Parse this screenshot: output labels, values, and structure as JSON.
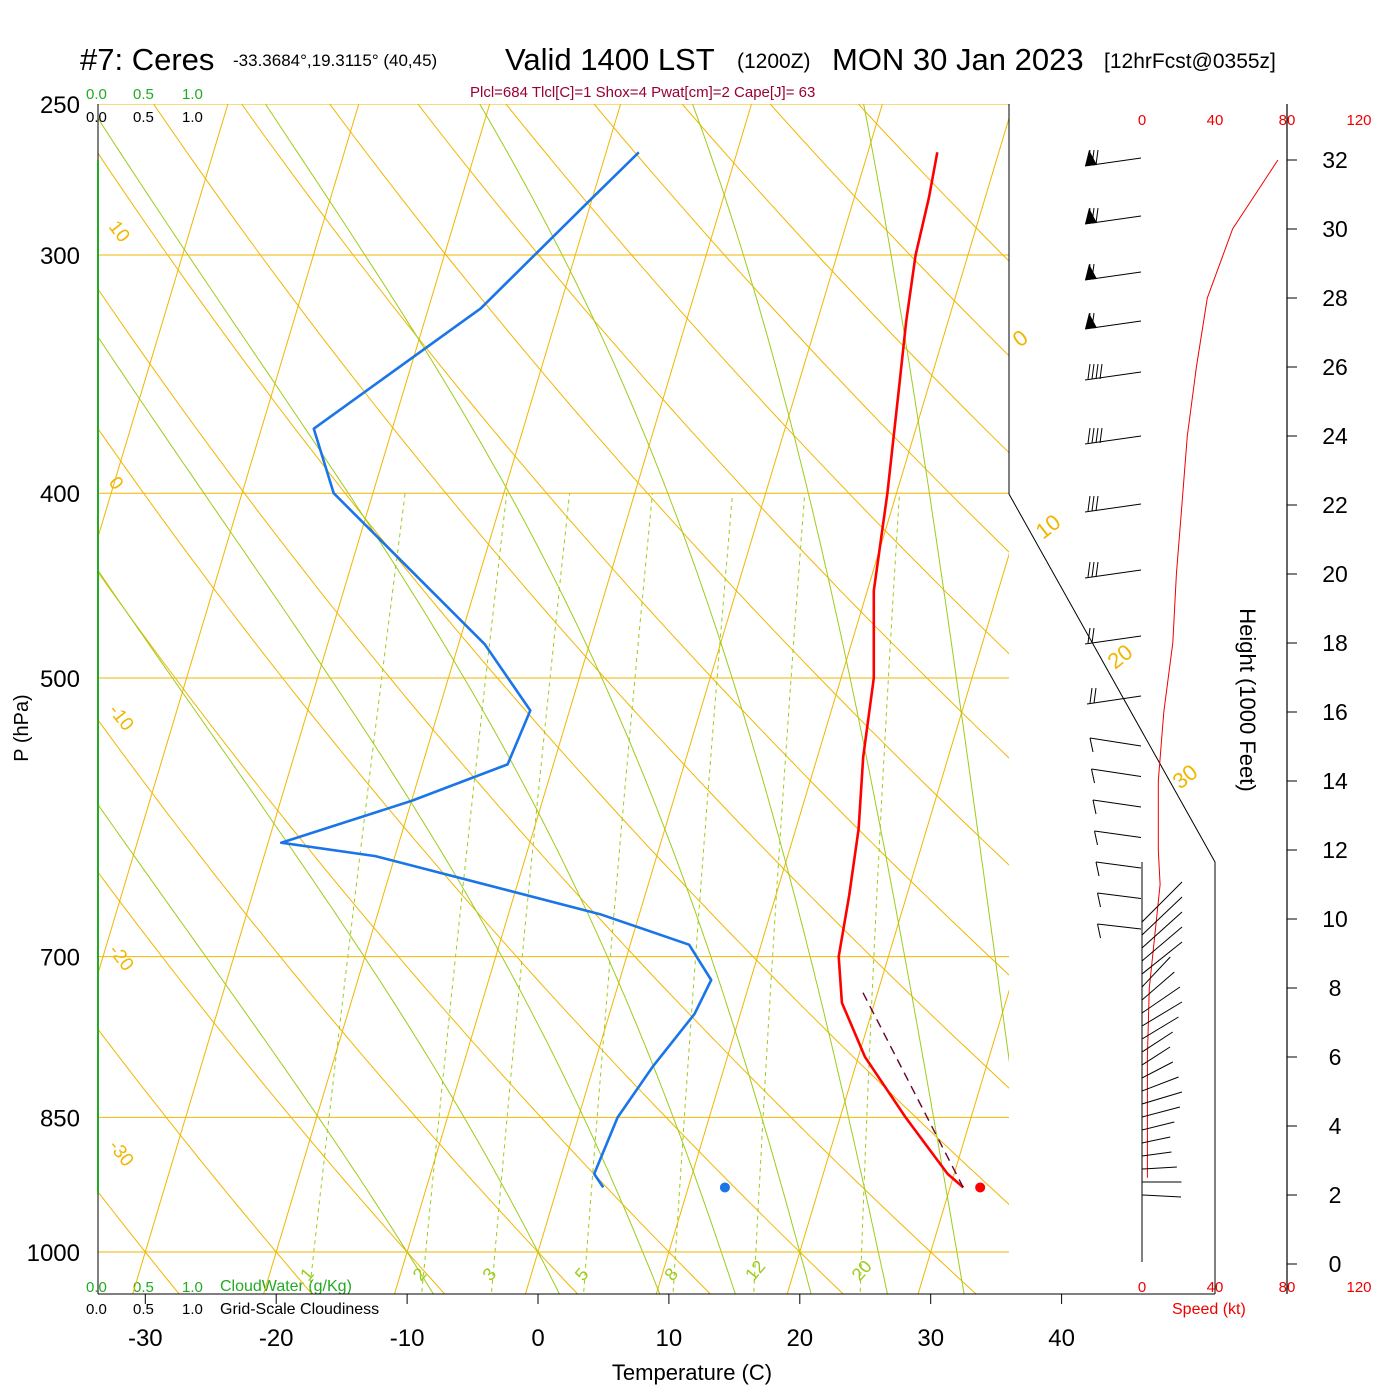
{
  "header": {
    "station": "#7: Ceres",
    "location": "-33.3684°,19.3115° (40,45)",
    "valid": "Valid 1400 LST",
    "zulu": "(1200Z)",
    "date": "MON 30 Jan 2023",
    "forecast": "[12hrFcst@0355z]",
    "indices": "Plcl=684 Tlcl[C]=1 Shox=4 Pwat[cm]=2 Cape[J]= 63"
  },
  "scales": {
    "cloudwater_ticks": [
      "0.0",
      "0.5",
      "1.0"
    ],
    "cloudiness_ticks": [
      "0.0",
      "0.5",
      "1.0"
    ],
    "cloudwater_label": "CloudWater (g/Kg)",
    "cloudiness_label": "Grid-Scale Cloudiness",
    "speed_ticks": [
      "0",
      "40",
      "80",
      "120"
    ],
    "speed_label": "Speed (kt)"
  },
  "colors": {
    "temperature": "#ff0000",
    "dewpoint": "#1a75e8",
    "isobar": "#f2b600",
    "isotherm": "#f2b600",
    "mixing_ratio": "#9ccc1c",
    "adiabat": "#9ccc1c",
    "parcel": "#660033",
    "cloudwater": "#22aa22",
    "speed": "#ee0000"
  },
  "chart_data": {
    "type": "line",
    "diagram": "Skew-T log-P",
    "xlabel": "Temperature (C)",
    "ylabel": "P (hPa)",
    "ylabel_right": "Height (1000 Feet)",
    "xlim": [
      -30,
      40
    ],
    "ylim": [
      1000,
      250
    ],
    "x_ticks": [
      -30,
      -20,
      -10,
      0,
      10,
      20,
      30,
      40
    ],
    "y_ticks": [
      250,
      300,
      400,
      500,
      700,
      850,
      1000
    ],
    "height_ticks": [
      0,
      2,
      4,
      6,
      8,
      10,
      12,
      14,
      16,
      18,
      20,
      22,
      24,
      26,
      28,
      30,
      32
    ],
    "isotherm_labels_left": [
      "10",
      "0",
      "-10",
      "-20",
      "-30"
    ],
    "isotherm_labels_right": [
      "0",
      "10",
      "20",
      "30"
    ],
    "mixing_ratio_labels": [
      "1",
      "2",
      "3",
      "5",
      "8",
      "12",
      "20"
    ],
    "series": [
      {
        "name": "Temperature",
        "points": [
          [
            31.0,
            925
          ],
          [
            29.5,
            910
          ],
          [
            25.0,
            850
          ],
          [
            20.5,
            790
          ],
          [
            17.5,
            740
          ],
          [
            16.2,
            700
          ],
          [
            15.6,
            650
          ],
          [
            14.8,
            600
          ],
          [
            13.5,
            550
          ],
          [
            12.5,
            500
          ],
          [
            10.5,
            450
          ],
          [
            9.3,
            400
          ],
          [
            7.7,
            350
          ],
          [
            6.8,
            325
          ],
          [
            6.0,
            300
          ],
          [
            5.7,
            280
          ],
          [
            5.3,
            265
          ]
        ]
      },
      {
        "name": "Dewpoint",
        "points": [
          [
            3.5,
            925
          ],
          [
            2.5,
            910
          ],
          [
            3.0,
            850
          ],
          [
            4.5,
            800
          ],
          [
            6.5,
            750
          ],
          [
            7.0,
            720
          ],
          [
            4.5,
            690
          ],
          [
            -3.0,
            665
          ],
          [
            -21.5,
            620
          ],
          [
            -29.0,
            610
          ],
          [
            -20.0,
            580
          ],
          [
            -13.5,
            555
          ],
          [
            -13.0,
            520
          ],
          [
            -18.0,
            480
          ],
          [
            -33.0,
            400
          ],
          [
            -36.0,
            370
          ],
          [
            -26.0,
            320
          ],
          [
            -20.0,
            280
          ],
          [
            -17.5,
            265
          ]
        ]
      },
      {
        "name": "Parcel",
        "points": [
          [
            31.0,
            925
          ],
          [
            18.8,
            730
          ]
        ]
      }
    ],
    "surface_temperature": 32.3,
    "surface_dewpoint": 12.8,
    "wind_speed_profile_height_kft": [
      2.5,
      4,
      6,
      8,
      10,
      11,
      12,
      14,
      16,
      18,
      20,
      22,
      24,
      26,
      28,
      30,
      32
    ],
    "wind_speed_profile_kt": [
      3,
      3,
      3,
      4,
      8,
      10,
      9,
      9,
      12,
      17,
      19,
      22,
      25,
      30,
      36,
      50,
      75
    ]
  }
}
